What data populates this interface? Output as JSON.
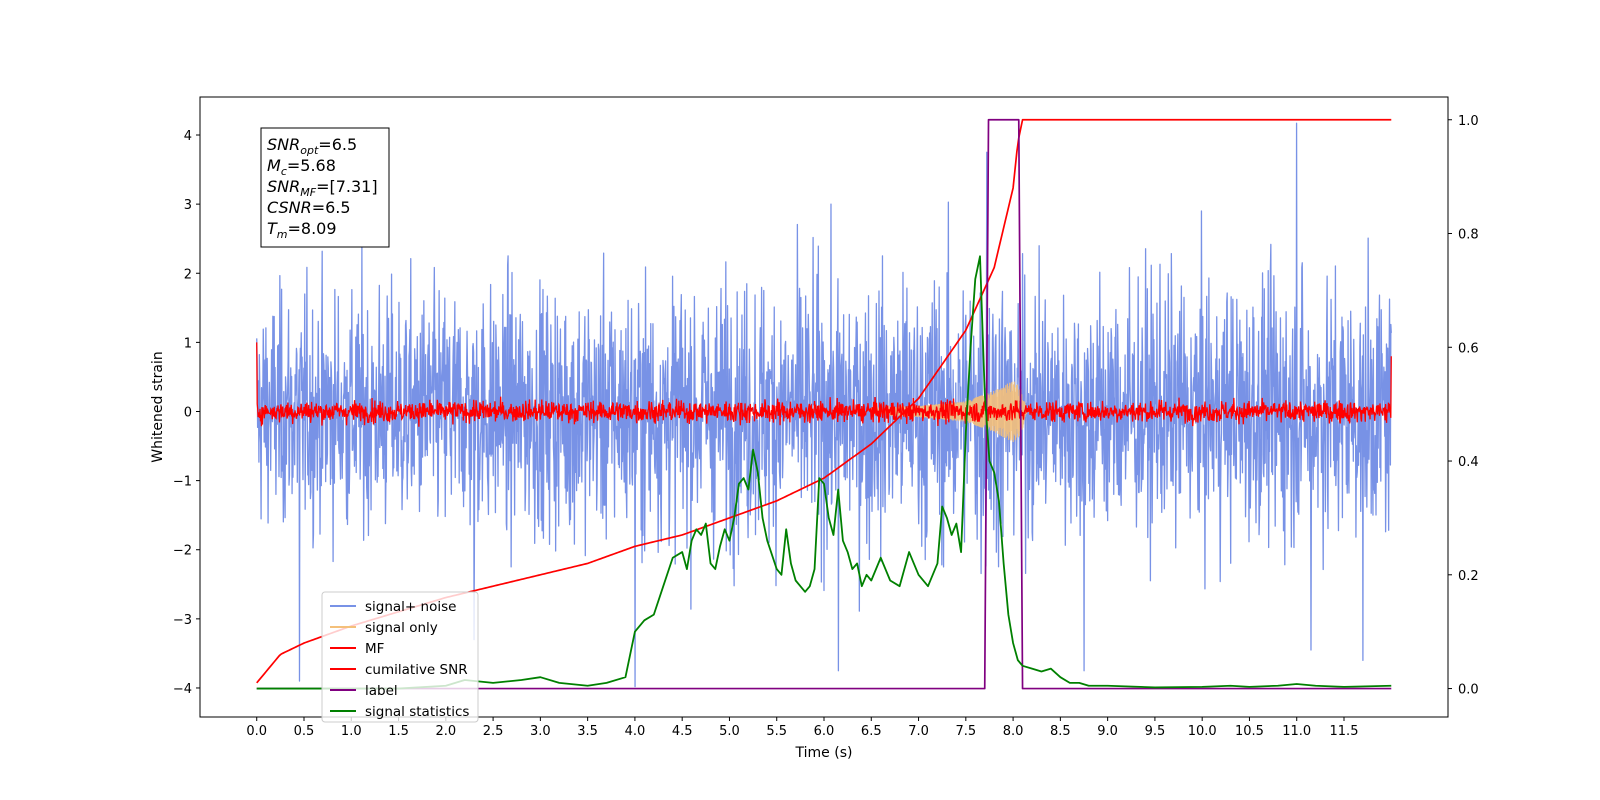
{
  "chart_data": {
    "type": "line",
    "xlabel": "Time (s)",
    "ylabel": "Whitened strain",
    "xlim": [
      -0.6,
      12.6
    ],
    "ylim": [
      -4.42,
      4.55
    ],
    "ylim_right": [
      -0.05,
      1.04
    ],
    "x_ticks": [
      0.0,
      0.5,
      1.0,
      1.5,
      2.0,
      2.5,
      3.0,
      3.5,
      4.0,
      4.5,
      5.0,
      5.5,
      6.0,
      6.5,
      7.0,
      7.5,
      8.0,
      8.5,
      9.0,
      9.5,
      10.0,
      10.5,
      11.0,
      11.5
    ],
    "x_tick_labels": [
      "0.0",
      "0.5",
      "1.0",
      "1.5",
      "2.0",
      "2.5",
      "3.0",
      "3.5",
      "4.0",
      "4.5",
      "5.0",
      "5.5",
      "6.0",
      "6.5",
      "7.0",
      "7.5",
      "8.0",
      "8.5",
      "9.0",
      "9.5",
      "10.0",
      "10.5",
      "11.0",
      "11.5"
    ],
    "y_ticks": [
      -4,
      -3,
      -2,
      -1,
      0,
      1,
      2,
      3,
      4
    ],
    "y_tick_labels": [
      "−4",
      "−3",
      "−2",
      "−1",
      "0",
      "1",
      "2",
      "3",
      "4"
    ],
    "y_right_ticks": [
      0.0,
      0.2,
      0.4,
      0.6,
      0.8,
      1.0
    ],
    "y_right_tick_labels": [
      "0.0",
      "0.2",
      "0.4",
      "0.6",
      "0.8",
      "1.0"
    ],
    "annotation": {
      "lines": [
        {
          "sym": "SNR",
          "sub": "opt",
          "rest": "=6.5"
        },
        {
          "sym": "M",
          "sub": "c",
          "rest": "=5.68"
        },
        {
          "sym": "SNR",
          "sub": "MF",
          "rest": "=[7.31]"
        },
        {
          "sym": "CSNR",
          "sub": "",
          "rest": "=6.5"
        },
        {
          "sym": "T",
          "sub": "m",
          "rest": "=8.09"
        }
      ]
    },
    "legend": {
      "placement": "lower-left",
      "entries": [
        {
          "label": "signal+ noise",
          "color": "#7892e6"
        },
        {
          "label": "signal only",
          "color": "#f4c07a"
        },
        {
          "label": "MF",
          "color": "#ff0000"
        },
        {
          "label": "cumilative SNR",
          "color": "#ff0000"
        },
        {
          "label": "label",
          "color": "#800080"
        },
        {
          "label": "signal statistics",
          "color": "#008000"
        }
      ]
    },
    "series": [
      {
        "name": "signal+ noise",
        "axis": "left",
        "color": "#7892e6",
        "x_range": [
          0.0,
          12.0
        ],
        "envelope": [
          [
            0.0,
            2.5
          ],
          [
            0.5,
            2.6
          ],
          [
            1.0,
            2.7
          ],
          [
            2.0,
            2.7
          ],
          [
            3.0,
            2.8
          ],
          [
            4.0,
            2.8
          ],
          [
            5.0,
            2.9
          ],
          [
            6.0,
            3.0
          ],
          [
            7.0,
            3.0
          ],
          [
            7.5,
            3.2
          ],
          [
            7.75,
            3.8
          ],
          [
            8.0,
            2.8
          ],
          [
            9.0,
            2.9
          ],
          [
            10.0,
            2.9
          ],
          [
            11.0,
            3.0
          ],
          [
            12.0,
            2.7
          ]
        ],
        "peaks": [
          [
            7.72,
            3.75
          ],
          [
            11.0,
            4.17
          ],
          [
            4.0,
            -3.98
          ],
          [
            0.45,
            -3.9
          ],
          [
            6.15,
            -3.75
          ],
          [
            8.75,
            -3.75
          ],
          [
            11.7,
            -3.6
          ],
          [
            11.15,
            -3.45
          ],
          [
            2.3,
            -3.3
          ]
        ]
      },
      {
        "name": "signal only",
        "axis": "left",
        "color": "#f4c07a",
        "x_range": [
          6.5,
          8.2
        ],
        "amplitude": [
          [
            6.5,
            0.05
          ],
          [
            7.0,
            0.08
          ],
          [
            7.5,
            0.15
          ],
          [
            7.8,
            0.3
          ],
          [
            8.0,
            0.45
          ],
          [
            8.08,
            0.35
          ],
          [
            8.15,
            0.0
          ]
        ]
      },
      {
        "name": "MF",
        "axis": "left",
        "color": "#ff0000",
        "x_range": [
          0.0,
          12.0
        ],
        "band": 0.22,
        "edge_values": [
          [
            0.0,
            1.0
          ],
          [
            12.0,
            0.8
          ]
        ]
      },
      {
        "name": "cumilative SNR",
        "axis": "right",
        "color": "#ff0000",
        "x": [
          0.0,
          0.25,
          0.5,
          1.0,
          1.5,
          2.0,
          2.5,
          3.0,
          3.5,
          4.0,
          4.5,
          5.0,
          5.5,
          6.0,
          6.5,
          7.0,
          7.5,
          7.8,
          8.0,
          8.05,
          8.1,
          12.0
        ],
        "values": [
          0.01,
          0.06,
          0.08,
          0.11,
          0.135,
          0.16,
          0.18,
          0.2,
          0.22,
          0.25,
          0.27,
          0.3,
          0.33,
          0.37,
          0.43,
          0.51,
          0.63,
          0.74,
          0.88,
          0.96,
          1.0,
          1.0
        ]
      },
      {
        "name": "label",
        "axis": "right",
        "color": "#800080",
        "x": [
          0.0,
          7.7,
          7.74,
          8.06,
          8.1,
          12.0
        ],
        "values": [
          0.0,
          0.0,
          1.0,
          1.0,
          0.0,
          0.0
        ]
      },
      {
        "name": "signal statistics",
        "axis": "right",
        "color": "#008000",
        "x": [
          0.0,
          0.5,
          1.0,
          1.5,
          2.0,
          2.2,
          2.5,
          2.8,
          3.0,
          3.2,
          3.5,
          3.7,
          3.9,
          4.0,
          4.1,
          4.2,
          4.3,
          4.4,
          4.5,
          4.55,
          4.6,
          4.65,
          4.7,
          4.75,
          4.8,
          4.85,
          4.9,
          4.95,
          5.0,
          5.05,
          5.1,
          5.15,
          5.2,
          5.25,
          5.3,
          5.35,
          5.4,
          5.5,
          5.55,
          5.6,
          5.65,
          5.7,
          5.75,
          5.8,
          5.85,
          5.9,
          5.95,
          6.0,
          6.05,
          6.1,
          6.15,
          6.2,
          6.25,
          6.3,
          6.35,
          6.4,
          6.45,
          6.5,
          6.6,
          6.7,
          6.8,
          6.9,
          7.0,
          7.1,
          7.2,
          7.25,
          7.3,
          7.35,
          7.4,
          7.45,
          7.5,
          7.55,
          7.6,
          7.65,
          7.7,
          7.75,
          7.8,
          7.85,
          7.9,
          7.95,
          8.0,
          8.05,
          8.1,
          8.2,
          8.3,
          8.4,
          8.5,
          8.6,
          8.7,
          8.8,
          9.0,
          9.5,
          10.0,
          10.3,
          10.5,
          10.8,
          11.0,
          11.2,
          11.5,
          12.0
        ],
        "values": [
          0.0,
          0.0,
          0.0,
          0.0,
          0.005,
          0.015,
          0.01,
          0.015,
          0.02,
          0.01,
          0.005,
          0.01,
          0.02,
          0.1,
          0.12,
          0.13,
          0.18,
          0.23,
          0.24,
          0.21,
          0.26,
          0.28,
          0.27,
          0.29,
          0.22,
          0.21,
          0.25,
          0.28,
          0.26,
          0.3,
          0.36,
          0.37,
          0.35,
          0.42,
          0.38,
          0.3,
          0.26,
          0.21,
          0.2,
          0.28,
          0.22,
          0.19,
          0.18,
          0.17,
          0.18,
          0.21,
          0.37,
          0.36,
          0.3,
          0.27,
          0.35,
          0.26,
          0.24,
          0.21,
          0.22,
          0.18,
          0.2,
          0.19,
          0.23,
          0.19,
          0.18,
          0.24,
          0.2,
          0.18,
          0.22,
          0.32,
          0.3,
          0.27,
          0.29,
          0.24,
          0.45,
          0.6,
          0.72,
          0.76,
          0.52,
          0.4,
          0.38,
          0.33,
          0.22,
          0.13,
          0.08,
          0.05,
          0.04,
          0.035,
          0.03,
          0.035,
          0.02,
          0.01,
          0.01,
          0.005,
          0.005,
          0.002,
          0.003,
          0.005,
          0.003,
          0.005,
          0.008,
          0.005,
          0.003,
          0.005
        ]
      }
    ]
  }
}
